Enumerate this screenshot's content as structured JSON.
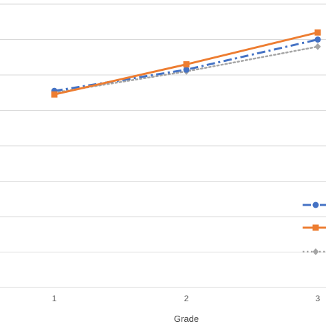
{
  "chart_data": {
    "type": "line",
    "title": "",
    "xlabel": "Grade",
    "ylabel": "",
    "x": [
      1,
      2,
      3
    ],
    "ylim": [
      0,
      8
    ],
    "grid": true,
    "legend_position": "right",
    "series": [
      {
        "color": "#4472C4",
        "style": "dash-dot",
        "marker": "circle",
        "values": [
          5.55,
          6.15,
          7.0
        ]
      },
      {
        "color": "#ED7D31",
        "style": "solid",
        "marker": "square",
        "values": [
          5.45,
          6.3,
          7.2
        ]
      },
      {
        "color": "#A5A5A5",
        "style": "dotted",
        "marker": "diamond",
        "values": [
          5.5,
          6.1,
          6.8
        ]
      }
    ]
  }
}
